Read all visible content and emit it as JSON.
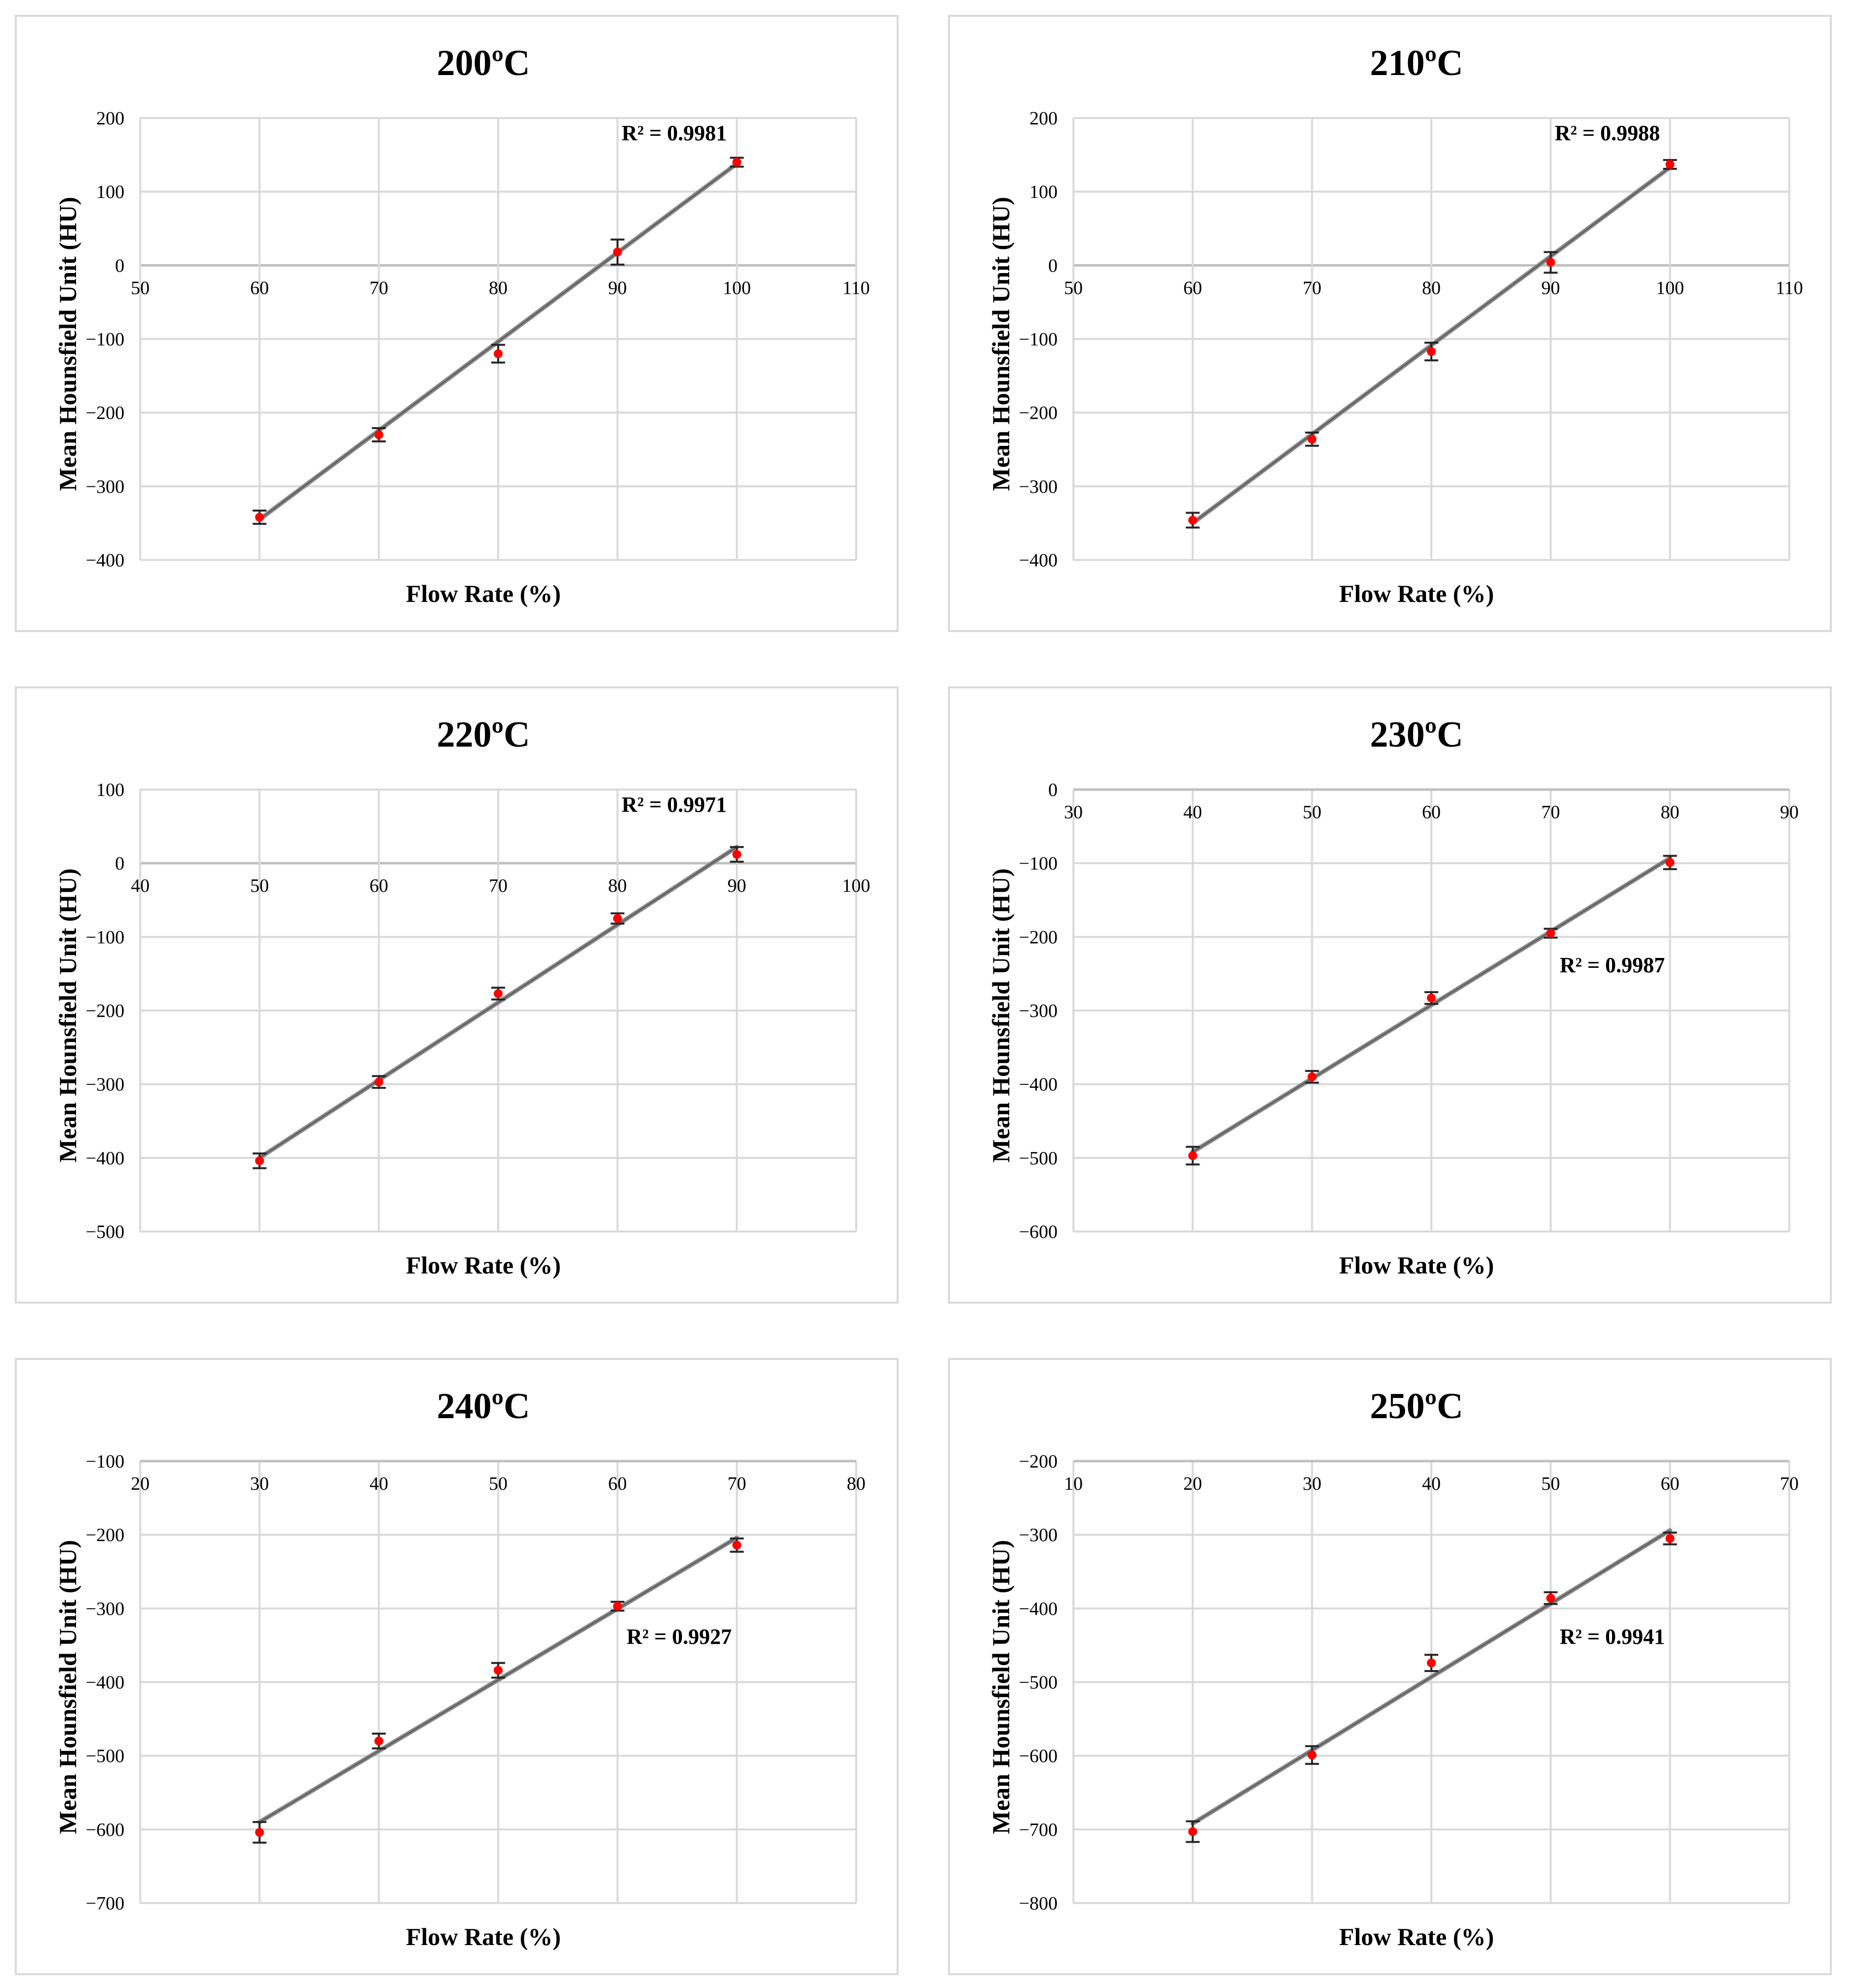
{
  "figure": "six panel calibration plots",
  "chart_data": [
    {
      "type": "scatter",
      "title": "200ºC",
      "xlabel": "Flow Rate (%)",
      "ylabel": "Mean Hounsfield  Unit  (HU)",
      "xlim": [
        50,
        110
      ],
      "x_ticks": [
        "50",
        "60",
        "70",
        "80",
        "90",
        "100",
        "110"
      ],
      "ylim": [
        -400,
        200
      ],
      "y_ticks": [
        "200",
        "100",
        "0",
        "−100",
        "−200",
        "−300",
        "−400"
      ],
      "x": [
        60,
        70,
        80,
        90,
        100
      ],
      "values": [
        -342,
        -230,
        -120,
        18,
        140
      ],
      "error": [
        9,
        9,
        12,
        17,
        6
      ],
      "trendline": [
        [
          60,
          -345
        ],
        [
          100,
          138
        ]
      ],
      "r2_label": "R² = 0.9981"
    },
    {
      "type": "scatter",
      "title": "210ºC",
      "xlabel": "Flow Rate (%)",
      "ylabel": "Mean Hounsfield  Unit  (HU)",
      "xlim": [
        50,
        110
      ],
      "x_ticks": [
        "50",
        "60",
        "70",
        "80",
        "90",
        "100",
        "110"
      ],
      "ylim": [
        -400,
        200
      ],
      "y_ticks": [
        "200",
        "100",
        "0",
        "−100",
        "−200",
        "−300",
        "−400"
      ],
      "x": [
        60,
        70,
        80,
        90,
        100
      ],
      "values": [
        -346,
        -236,
        -117,
        4,
        137
      ],
      "error": [
        10,
        9,
        12,
        14,
        6
      ],
      "trendline": [
        [
          60,
          -350
        ],
        [
          100,
          133
        ]
      ],
      "r2_label": "R² = 0.9988"
    },
    {
      "type": "scatter",
      "title": "220ºC",
      "xlabel": "Flow Rate (%)",
      "ylabel": "Mean Hounsfield  Unit  (HU)",
      "xlim": [
        40,
        100
      ],
      "x_ticks": [
        "40",
        "50",
        "60",
        "70",
        "80",
        "90",
        "100"
      ],
      "ylim": [
        -500,
        100
      ],
      "y_ticks": [
        "100",
        "0",
        "−100",
        "−200",
        "−300",
        "−400",
        "−500"
      ],
      "x": [
        50,
        60,
        70,
        80,
        90
      ],
      "values": [
        -404,
        -297,
        -177,
        -75,
        12
      ],
      "error": [
        10,
        8,
        8,
        7,
        10
      ],
      "trendline": [
        [
          50,
          -400
        ],
        [
          90,
          22
        ]
      ],
      "r2_label": "R² = 0.9971"
    },
    {
      "type": "scatter",
      "title": "230ºC",
      "xlabel": "Flow Rate (%)",
      "ylabel": "Mean Hounsfield  Unit  (HU)",
      "xlim": [
        30,
        90
      ],
      "x_ticks": [
        "30",
        "40",
        "50",
        "60",
        "70",
        "80",
        "90"
      ],
      "ylim": [
        -600,
        0
      ],
      "y_ticks": [
        "0",
        "−100",
        "−200",
        "−300",
        "−400",
        "−500",
        "−600"
      ],
      "x": [
        40,
        50,
        60,
        70,
        80
      ],
      "values": [
        -497,
        -390,
        -283,
        -195,
        -99
      ],
      "error": [
        12,
        8,
        8,
        6,
        9
      ],
      "trendline": [
        [
          40,
          -492
        ],
        [
          80,
          -93
        ]
      ],
      "r2_label": "R² = 0.9987"
    },
    {
      "type": "scatter",
      "title": "240ºC",
      "xlabel": "Flow Rate (%)",
      "ylabel": "Mean Hounsfield  Unit  (HU)",
      "xlim": [
        20,
        80
      ],
      "x_ticks": [
        "20",
        "30",
        "40",
        "50",
        "60",
        "70",
        "80"
      ],
      "ylim": [
        -700,
        -100
      ],
      "y_ticks": [
        "−100",
        "−200",
        "−300",
        "−400",
        "−500",
        "−600",
        "−700"
      ],
      "x": [
        30,
        40,
        50,
        60,
        70
      ],
      "values": [
        -604,
        -480,
        -384,
        -297,
        -214
      ],
      "error": [
        14,
        10,
        10,
        6,
        9
      ],
      "trendline": [
        [
          30,
          -590
        ],
        [
          70,
          -204
        ]
      ],
      "r2_label": "R² = 0.9927"
    },
    {
      "type": "scatter",
      "title": "250ºC",
      "xlabel": "Flow Rate (%)",
      "ylabel": "Mean Hounsfield  Unit  (HU)",
      "xlim": [
        10,
        70
      ],
      "x_ticks": [
        "10",
        "20",
        "30",
        "40",
        "50",
        "60",
        "70"
      ],
      "ylim": [
        -800,
        -200
      ],
      "y_ticks": [
        "−200",
        "−300",
        "−400",
        "−500",
        "−600",
        "−700",
        "−800"
      ],
      "x": [
        20,
        30,
        40,
        50,
        60
      ],
      "values": [
        -703,
        -599,
        -474,
        -386,
        -305
      ],
      "error": [
        14,
        12,
        11,
        8,
        8
      ],
      "trendline": [
        [
          20,
          -692
        ],
        [
          60,
          -294
        ]
      ],
      "r2_label": "R² = 0.9941"
    }
  ]
}
